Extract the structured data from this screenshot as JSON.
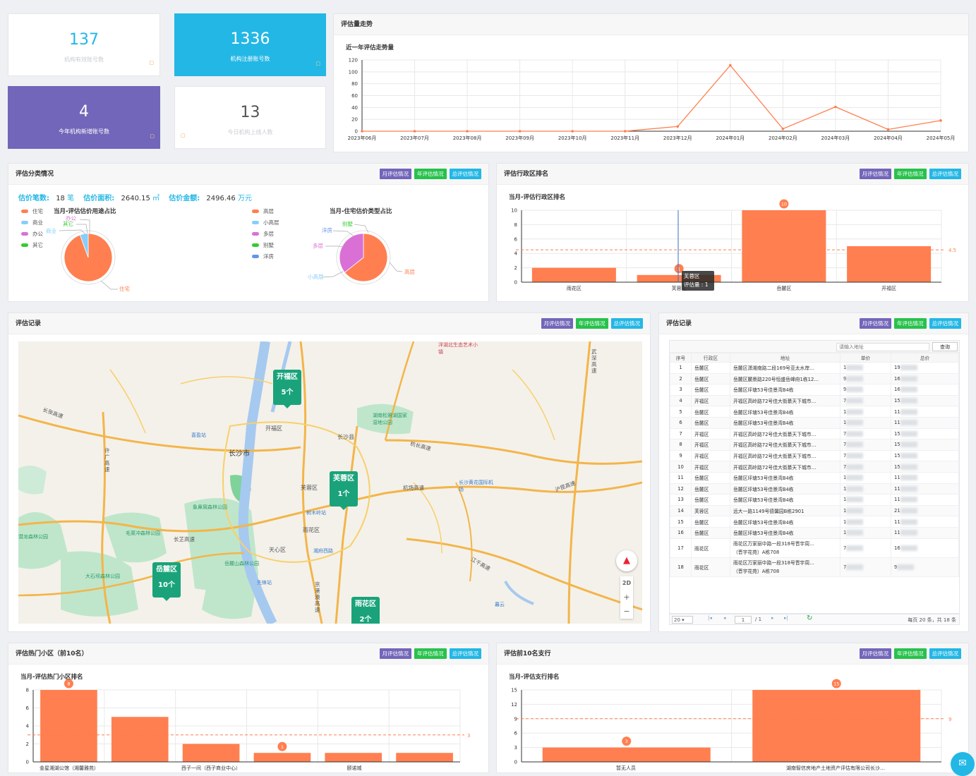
{
  "stats": [
    {
      "value": "137",
      "label": "机构有效账号数"
    },
    {
      "value": "1336",
      "label": "机构注册账号数"
    },
    {
      "value": "4",
      "label": "今年机构新增账号数"
    },
    {
      "value": "13",
      "label": "今日机构上线人数"
    }
  ],
  "trend": {
    "panel_title": "评估量走势",
    "chart_title": "近一年评估走势量",
    "chart_data": {
      "type": "line",
      "categories": [
        "2023年06月",
        "2023年07月",
        "2023年08月",
        "2023年09月",
        "2023年10月",
        "2023年11月",
        "2023年12月",
        "2024年01月",
        "2024年02月",
        "2024年03月",
        "2024年04月",
        "2024年05月"
      ],
      "values": [
        0,
        0,
        0,
        0,
        0,
        0,
        8,
        111,
        4,
        41,
        3,
        18
      ],
      "ylim": [
        0,
        120
      ],
      "yticks": [
        0,
        20,
        40,
        60,
        80,
        100,
        120
      ],
      "color": "#ff7f50"
    }
  },
  "buttons": {
    "month": "月评估情况",
    "year": "年评估情况",
    "total": "总评估情况"
  },
  "classify": {
    "panel_title": "评估分类情况",
    "summary": {
      "count_label": "估价笔数:",
      "count_value": "18",
      "count_unit": "笔",
      "area_label": "估价面积:",
      "area_value": "2640.15",
      "area_unit": "㎡",
      "amount_label": "估价金额:",
      "amount_value": "2496.46",
      "amount_unit": "万元"
    },
    "pie1_title": "当月-评估估价用途占比",
    "pie1_legend": [
      {
        "name": "住宅",
        "color": "#ff7f50"
      },
      {
        "name": "商业",
        "color": "#87cefa"
      },
      {
        "name": "办公",
        "color": "#da70d6"
      },
      {
        "name": "其它",
        "color": "#32cd32"
      }
    ],
    "pie1_labels": {
      "a": "办公",
      "b": "其它",
      "c": "商业",
      "d": "住宅"
    },
    "pie2_title": "当月-住宅估价类型占比",
    "pie2_legend": [
      {
        "name": "高层",
        "color": "#ff7f50"
      },
      {
        "name": "小高层",
        "color": "#87cefa"
      },
      {
        "name": "多层",
        "color": "#da70d6"
      },
      {
        "name": "别墅",
        "color": "#32cd32"
      },
      {
        "name": "洋房",
        "color": "#6495ed"
      }
    ],
    "pie2_labels": {
      "a": "别墅",
      "b": "洋房",
      "c": "多层",
      "d": "小高层",
      "e": "高层"
    },
    "chart_data": [
      {
        "type": "pie",
        "title": "当月-评估估价用途占比",
        "categories": [
          "住宅",
          "商业",
          "办公",
          "其它"
        ],
        "values": [
          17,
          1,
          0,
          0
        ]
      },
      {
        "type": "pie",
        "title": "当月-住宅估价类型占比",
        "categories": [
          "高层",
          "小高层",
          "多层",
          "别墅",
          "洋房"
        ],
        "values": [
          9,
          0,
          5,
          0,
          0
        ]
      }
    ]
  },
  "district": {
    "panel_title": "评估行政区排名",
    "chart_title": "当月-评估行政区排名",
    "tooltip_name": "芙蓉区",
    "tooltip_value": "评估量 : 1",
    "avg_label": "4.5",
    "max_label": "10",
    "min_label": "1",
    "chart_data": {
      "type": "bar",
      "categories": [
        "雨花区",
        "芙蓉区",
        "岳麓区",
        "开福区"
      ],
      "values": [
        2,
        1,
        10,
        5
      ],
      "ylim": [
        0,
        10
      ],
      "yticks": [
        0,
        2,
        4,
        6,
        8,
        10
      ],
      "average": 4.5
    }
  },
  "map": {
    "panel_title": "评估记录",
    "clusters": [
      {
        "name": "开福区",
        "count": "5个"
      },
      {
        "name": "芙蓉区",
        "count": "1个"
      },
      {
        "name": "岳麓区",
        "count": "10个"
      },
      {
        "name": "雨花区",
        "count": "2个"
      }
    ],
    "places": [
      "长沙市",
      "开福区",
      "长沙县",
      "芙蓉区",
      "雨花区",
      "天心区",
      "长张高速",
      "许广高速",
      "杭长高速",
      "机场高速",
      "长芷高速",
      "京港澳高速",
      "沪昆高速",
      "江千高速",
      "长沙黄花国际机场",
      "湖南松雅湖国家湿地公园",
      "岳麓山森林公园",
      "大石坝森林公园",
      "象鼻窝森林公园",
      "毛栗冲森林公园",
      "潜龙森林公园",
      "先锋站",
      "喜盈站",
      "湘府西路",
      "树木岭站",
      "洋湖北生态艺术小镇",
      "长沙",
      "武深高速",
      "暮云"
    ],
    "view_2d": "2D",
    "zoom_in": "+",
    "zoom_out": "−"
  },
  "records": {
    "panel_title": "评估记录",
    "search_placeholder": "请输入地址",
    "search_button": "查询",
    "columns": [
      "序号",
      "行政区",
      "地址",
      "单价",
      "总价"
    ],
    "rows": [
      {
        "no": "1",
        "district": "岳麓区",
        "addr": "岳麓区潇湘南路二段169号亚太水岸…",
        "p": "1",
        "t": "19"
      },
      {
        "no": "2",
        "district": "岳麓区",
        "addr": "岳麓区麓景路220号恒盛岳峰府1栋12…",
        "p": "9",
        "t": "16"
      },
      {
        "no": "3",
        "district": "岳麓区",
        "addr": "岳麓区坪塘53号佳景湾B4栋",
        "p": "9",
        "t": "16"
      },
      {
        "no": "4",
        "district": "开福区",
        "addr": "开福区高岭路72号佳大街綦天下城市…",
        "p": "7",
        "t": "15"
      },
      {
        "no": "5",
        "district": "岳麓区",
        "addr": "岳麓区坪塘53号佳景湾B4栋",
        "p": "1",
        "t": "11"
      },
      {
        "no": "6",
        "district": "岳麓区",
        "addr": "岳麓区坪塘53号佳景湾B4栋",
        "p": "1",
        "t": "11"
      },
      {
        "no": "7",
        "district": "开福区",
        "addr": "开福区高岭路72号佳大街綦天下城市…",
        "p": "7",
        "t": "15"
      },
      {
        "no": "8",
        "district": "开福区",
        "addr": "开福区高岭路72号佳大街綦天下城市…",
        "p": "7",
        "t": "15"
      },
      {
        "no": "9",
        "district": "开福区",
        "addr": "开福区高岭路72号佳大街綦天下城市…",
        "p": "7",
        "t": "15"
      },
      {
        "no": "10",
        "district": "开福区",
        "addr": "开福区高岭路72号佳大街綦天下城市…",
        "p": "7",
        "t": "15"
      },
      {
        "no": "11",
        "district": "岳麓区",
        "addr": "岳麓区坪塘53号佳景湾B4栋",
        "p": "1",
        "t": "11"
      },
      {
        "no": "12",
        "district": "岳麓区",
        "addr": "岳麓区坪塘53号佳景湾B4栋",
        "p": "1",
        "t": "11"
      },
      {
        "no": "13",
        "district": "岳麓区",
        "addr": "岳麓区坪塘53号佳景湾B4栋",
        "p": "1",
        "t": "11"
      },
      {
        "no": "14",
        "district": "芙蓉区",
        "addr": "远大一路1149号德馨园B栋2901",
        "p": "1",
        "t": "21"
      },
      {
        "no": "15",
        "district": "岳麓区",
        "addr": "岳麓区坪塘53号佳景湾B4栋",
        "p": "1",
        "t": "11"
      },
      {
        "no": "16",
        "district": "岳麓区",
        "addr": "岳麓区坪塘53号佳景湾B4栋",
        "p": "1",
        "t": "11"
      },
      {
        "no": "17",
        "district": "雨花区",
        "addr": "雨花区万家丽中路一段318号晋宇周…",
        "addr2": "（晋宇花苑）A栋708",
        "p": "7",
        "t": "16"
      },
      {
        "no": "18",
        "district": "雨花区",
        "addr": "雨花区万家丽中路一段318号晋宇周…",
        "addr2": "（晋宇花苑）A栋708",
        "p": "7",
        "t": "9"
      }
    ],
    "page_size": "20",
    "page_current": "1",
    "page_total": "/ 1",
    "page_info": "每页 20 条，共 18 条"
  },
  "hot": {
    "panel_title": "评估热门小区（前10名）",
    "chart_title": "当月-评估热门小区排名",
    "avg_label": "3",
    "max_label": "8",
    "min_label": "1",
    "xlabels": [
      "金星湘湖公馆（湘馨雅苑）",
      "西子一间（西子商业中心）",
      "颐诺城"
    ],
    "chart_data": {
      "type": "bar",
      "values": [
        8,
        5,
        2,
        1,
        1,
        1
      ],
      "ylim": [
        0,
        8
      ],
      "yticks": [
        0,
        2,
        4,
        6,
        8
      ],
      "average": 3
    }
  },
  "bank": {
    "panel_title": "评估前10名支行",
    "chart_title": "当月-评估支行排名",
    "avg_label": "9",
    "max_label": "15",
    "min_label": "3",
    "xlabels": [
      "暂无人员",
      "湖南智信房地产土地资产评估有限公司长沙…"
    ],
    "chart_data": {
      "type": "bar",
      "values": [
        3,
        15
      ],
      "ylim": [
        0,
        15
      ],
      "yticks": [
        0,
        3,
        6,
        9,
        12,
        15
      ],
      "average": 9
    }
  }
}
